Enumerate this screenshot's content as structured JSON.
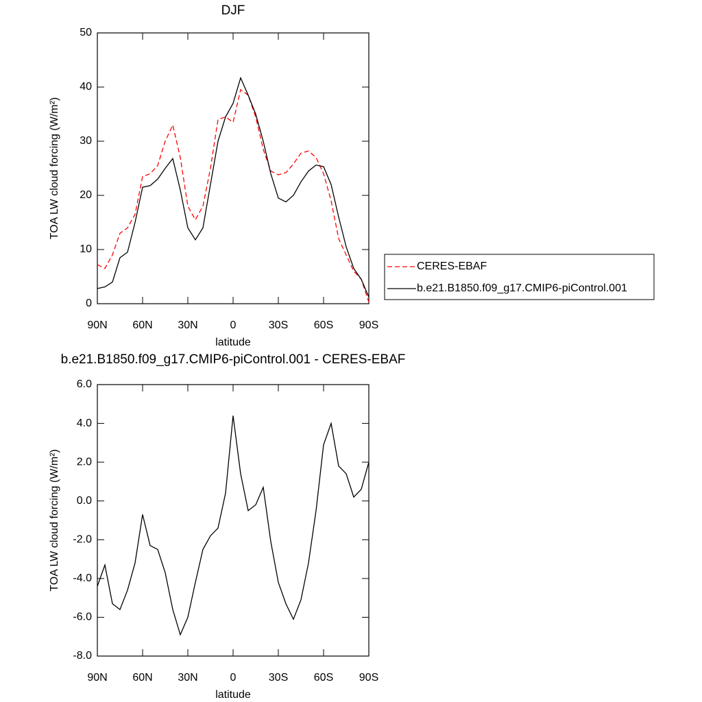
{
  "chart_data": [
    {
      "type": "line",
      "title": "DJF",
      "xlabel": "latitude",
      "ylabel": "TOA LW cloud forcing (W/m²)",
      "x": [
        90,
        85,
        80,
        75,
        70,
        65,
        60,
        55,
        50,
        45,
        40,
        35,
        30,
        25,
        20,
        15,
        10,
        5,
        0,
        -5,
        -10,
        -15,
        -20,
        -25,
        -30,
        -35,
        -40,
        -45,
        -50,
        -55,
        -60,
        -65,
        -70,
        -75,
        -80,
        -85,
        -90
      ],
      "series": [
        {
          "name": "CERES-EBAF",
          "color": "#ff0000",
          "dash": true,
          "values": [
            7.2,
            6.5,
            9,
            13,
            14,
            16.5,
            23.5,
            24,
            25.5,
            30,
            33,
            27,
            18,
            15.5,
            18,
            25,
            34,
            34.5,
            33.5,
            39.5,
            38.5,
            34.5,
            28.5,
            24.5,
            23.8,
            24.2,
            25.8,
            27.8,
            28.2,
            27,
            24,
            19,
            12,
            9,
            6,
            4.5,
            0.3
          ]
        },
        {
          "name": "b.e21.B1850.f09_g17.CMIP6-piControl.001",
          "color": "#000000",
          "dash": false,
          "values": [
            2.8,
            3.1,
            4,
            8.5,
            9.5,
            15,
            21.5,
            21.8,
            23,
            25,
            26.8,
            21,
            14,
            11.8,
            14,
            22,
            30,
            34.5,
            37,
            41.7,
            38.5,
            35,
            30,
            24,
            19.5,
            18.8,
            20,
            22.5,
            24.5,
            25.6,
            25.3,
            22,
            16,
            10.5,
            6.5,
            4.5,
            1.2
          ]
        }
      ],
      "xlim": [
        90,
        -90
      ],
      "xticks": [
        {
          "value": 90,
          "label": "90N"
        },
        {
          "value": 60,
          "label": "60N"
        },
        {
          "value": 30,
          "label": "30N"
        },
        0,
        {
          "value": -30,
          "label": "30S"
        },
        {
          "value": -60,
          "label": "60S"
        },
        {
          "value": -90,
          "label": "90S"
        }
      ],
      "ylim": [
        0,
        50
      ],
      "yticks": [
        0,
        10,
        20,
        30,
        40,
        50
      ],
      "legend": "outside right"
    },
    {
      "type": "line",
      "title": "b.e21.B1850.f09_g17.CMIP6-piControl.001 - CERES-EBAF",
      "xlabel": "latitude",
      "ylabel": "TOA LW cloud forcing (W/m²)",
      "x": [
        90,
        85,
        80,
        75,
        70,
        65,
        60,
        55,
        50,
        45,
        40,
        35,
        30,
        25,
        20,
        15,
        10,
        5,
        0,
        -5,
        -10,
        -15,
        -20,
        -25,
        -30,
        -35,
        -40,
        -45,
        -50,
        -55,
        -60,
        -65,
        -70,
        -75,
        -80,
        -85,
        -90
      ],
      "series": [
        {
          "color": "#000000",
          "dash": false,
          "values": [
            -4.4,
            -3.3,
            -5.3,
            -5.6,
            -4.6,
            -3.2,
            -0.7,
            -2.3,
            -2.5,
            -3.7,
            -5.6,
            -6.9,
            -6.0,
            -4.2,
            -2.5,
            -1.8,
            -1.4,
            0.4,
            4.4,
            1.4,
            -0.5,
            -0.2,
            0.7,
            -2.1,
            -4.2,
            -5.3,
            -6.1,
            -5.1,
            -3.2,
            -0.5,
            2.9,
            4.0,
            1.8,
            1.4,
            0.2,
            0.6,
            2.0
          ]
        }
      ],
      "xlim": [
        90,
        -90
      ],
      "xticks": [
        {
          "value": 90,
          "label": "90N"
        },
        {
          "value": 60,
          "label": "60N"
        },
        {
          "value": 30,
          "label": "30N"
        },
        0,
        {
          "value": -30,
          "label": "30S"
        },
        {
          "value": -60,
          "label": "60S"
        },
        {
          "value": -90,
          "label": "90S"
        }
      ],
      "ylim": [
        -8,
        6
      ],
      "yticks": [
        {
          "value": -8,
          "label": "-8.0"
        },
        {
          "value": -6,
          "label": "-6.0"
        },
        {
          "value": -4,
          "label": "-4.0"
        },
        {
          "value": -2,
          "label": "-2.0"
        },
        {
          "value": 0,
          "label": "0.0"
        },
        {
          "value": 2,
          "label": "2.0"
        },
        {
          "value": 4,
          "label": "4.0"
        },
        {
          "value": 6,
          "label": "6.0"
        }
      ]
    }
  ]
}
